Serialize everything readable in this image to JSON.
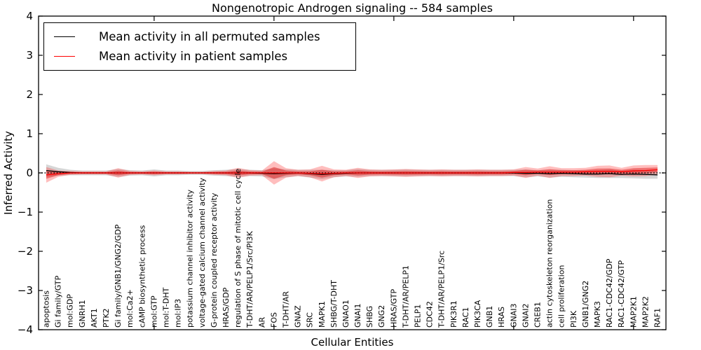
{
  "figure": {
    "title": "Nongenotropic Androgen signaling -- 584 samples",
    "xlabel": "Cellular Entities",
    "ylabel": "Inferred Activity"
  },
  "legend": {
    "items": [
      {
        "label": "Mean activity in all permuted samples",
        "color": "#000000"
      },
      {
        "label": "Mean activity in patient samples",
        "color": "#ff0000"
      }
    ]
  },
  "chart_data": {
    "type": "line",
    "title": "Nongenotropic Androgen signaling -- 584 samples",
    "xlabel": "Cellular Entities",
    "ylabel": "Inferred Activity",
    "ylim": [
      -4,
      4
    ],
    "yticks": [
      -4,
      -3,
      -2,
      -1,
      0,
      1,
      2,
      3,
      4
    ],
    "ytick_labels": [
      "−4",
      "−3",
      "−2",
      "−1",
      "0",
      "1",
      "2",
      "3",
      "4"
    ],
    "x_major_tick_indices": [
      9,
      19,
      29,
      39,
      49
    ],
    "grid": false,
    "legend_position": "upper left",
    "zero_line": {
      "style": "dotted",
      "color": "#000000"
    },
    "categories": [
      "apoptosis",
      "Gi family/GTP",
      "mol:GDP",
      "GNRH1",
      "AKT1",
      "PTK2",
      "Gi family/GNB1/GNG2/GDP",
      "mol:Ca2+",
      "cAMP biosynthetic process",
      "mol:GTP",
      "mol:T-DHT",
      "mol:IP3",
      "potassium channel inhibitor activity",
      "voltage-gated calcium channel activity",
      "G-protein coupled receptor activity",
      "HRAS/GDP",
      "regulation of S phase of mitotic cell cycle",
      "T-DHT/AR/PELP1/Src/PI3K",
      "AR",
      "FOS",
      "T-DHT/AR",
      "GNAZ",
      "SRC",
      "MAPK1",
      "SHBG/T-DHT",
      "GNAO1",
      "GNAI1",
      "SHBG",
      "GNG2",
      "HRAS/GTP",
      "T-DHT/AR/PELP1",
      "PELP1",
      "CDC42",
      "T-DHT/AR/PELP1/Src",
      "PIK3R1",
      "RAC1",
      "PIK3CA",
      "GNB1",
      "HRAS",
      "GNAI3",
      "GNAI2",
      "CREB1",
      "actin cytoskeleton reorganization",
      "cell proliferation",
      "PI3K",
      "GNB1/GNG2",
      "MAPK3",
      "RAC1-CDC42/GDP",
      "RAC1-CDC42/GTP",
      "MAP2K1",
      "MAP2K2",
      "RAF1"
    ],
    "series": [
      {
        "name": "Mean activity in all permuted samples",
        "color": "#000000",
        "style": "solid",
        "values": [
          0.06,
          0.03,
          0.01,
          0,
          0,
          0,
          0,
          0,
          0,
          0,
          0,
          0,
          0,
          0,
          0,
          0,
          0,
          0,
          -0.01,
          -0.02,
          -0.01,
          0,
          -0.02,
          -0.04,
          -0.02,
          -0.01,
          0,
          0,
          0,
          0,
          0,
          0,
          0,
          0,
          0,
          0,
          0,
          0,
          0,
          0,
          -0.01,
          -0.01,
          -0.02,
          -0.01,
          -0.02,
          -0.03,
          -0.03,
          -0.02,
          -0.04,
          -0.03,
          -0.04,
          -0.05
        ]
      },
      {
        "name": "Mean activity in patient samples",
        "color": "#ff0000",
        "style": "solid",
        "values": [
          -0.05,
          -0.02,
          0,
          0,
          0,
          0,
          0,
          0,
          0,
          0,
          0,
          0,
          0,
          0,
          0,
          0,
          0,
          0,
          0,
          0,
          0,
          0,
          -0.01,
          -0.02,
          -0.01,
          0,
          0,
          0,
          0,
          0,
          0,
          0,
          0,
          0,
          0,
          0,
          0,
          0,
          0,
          0.01,
          0.01,
          0.02,
          0.02,
          0.02,
          0.02,
          0.03,
          0.04,
          0.04,
          0.03,
          0.05,
          0.06,
          0.08
        ]
      }
    ],
    "bands": [
      {
        "name": "permuted-samples-spread",
        "series": 0,
        "color": "rgba(128,128,128,0.32)",
        "halfwidths": [
          0.16,
          0.1,
          0.07,
          0.06,
          0.06,
          0.06,
          0.1,
          0.07,
          0.06,
          0.09,
          0.06,
          0.06,
          0.05,
          0.05,
          0.07,
          0.08,
          0.1,
          0.08,
          0.08,
          0.14,
          0.1,
          0.08,
          0.1,
          0.12,
          0.09,
          0.08,
          0.1,
          0.08,
          0.08,
          0.08,
          0.09,
          0.08,
          0.08,
          0.08,
          0.08,
          0.08,
          0.08,
          0.08,
          0.08,
          0.08,
          0.1,
          0.08,
          0.1,
          0.09,
          0.09,
          0.09,
          0.1,
          0.11,
          0.09,
          0.11,
          0.11,
          0.1
        ]
      },
      {
        "name": "patient-samples-spread-outer",
        "series": 1,
        "color": "rgba(255,40,40,0.30)",
        "halfwidths": [
          0.2,
          0.08,
          0.05,
          0.04,
          0.04,
          0.04,
          0.12,
          0.05,
          0.04,
          0.06,
          0.04,
          0.04,
          0.03,
          0.03,
          0.05,
          0.06,
          0.13,
          0.07,
          0.06,
          0.3,
          0.12,
          0.08,
          0.1,
          0.2,
          0.1,
          0.08,
          0.13,
          0.09,
          0.08,
          0.09,
          0.1,
          0.09,
          0.08,
          0.09,
          0.08,
          0.08,
          0.09,
          0.08,
          0.08,
          0.08,
          0.14,
          0.09,
          0.15,
          0.1,
          0.1,
          0.1,
          0.14,
          0.15,
          0.1,
          0.14,
          0.14,
          0.12
        ]
      },
      {
        "name": "patient-samples-spread-inner",
        "series": 1,
        "color": "rgba(220,0,0,0.40)",
        "halfwidths": [
          0.1,
          0.04,
          0.025,
          0.02,
          0.02,
          0.02,
          0.06,
          0.025,
          0.02,
          0.03,
          0.02,
          0.02,
          0.015,
          0.015,
          0.025,
          0.03,
          0.065,
          0.035,
          0.03,
          0.15,
          0.06,
          0.04,
          0.05,
          0.1,
          0.05,
          0.04,
          0.065,
          0.045,
          0.04,
          0.045,
          0.05,
          0.045,
          0.04,
          0.045,
          0.04,
          0.04,
          0.045,
          0.04,
          0.04,
          0.04,
          0.07,
          0.045,
          0.075,
          0.05,
          0.05,
          0.05,
          0.07,
          0.075,
          0.05,
          0.07,
          0.07,
          0.06
        ]
      }
    ]
  }
}
